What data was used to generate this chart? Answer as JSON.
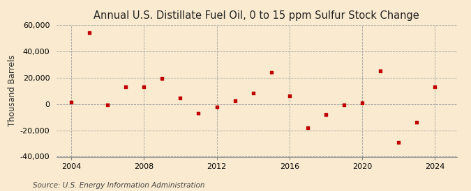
{
  "title": "Annual U.S. Distillate Fuel Oil, 0 to 15 ppm Sulfur Stock Change",
  "ylabel": "Thousand Barrels",
  "source": "Source: U.S. Energy Information Administration",
  "years": [
    2004,
    2005,
    2006,
    2007,
    2008,
    2009,
    2010,
    2011,
    2012,
    2013,
    2014,
    2015,
    2016,
    2017,
    2018,
    2019,
    2020,
    2021,
    2022,
    2023,
    2024
  ],
  "values": [
    1200,
    54000,
    -500,
    13000,
    13000,
    19500,
    4500,
    -7000,
    -2500,
    2500,
    8000,
    24000,
    6000,
    -18000,
    -8000,
    -1000,
    1000,
    25000,
    -29000,
    -14000,
    13000
  ],
  "point_color": "#c00000",
  "bg_color": "#faebd0",
  "grid_color": "#999999",
  "ylim": [
    -40000,
    60000
  ],
  "xlim": [
    2003.2,
    2025.2
  ],
  "yticks": [
    -40000,
    -20000,
    0,
    20000,
    40000,
    60000
  ],
  "xticks": [
    2004,
    2008,
    2012,
    2016,
    2020,
    2024
  ],
  "title_fontsize": 10.5,
  "label_fontsize": 8.5,
  "tick_fontsize": 8,
  "source_fontsize": 7.5
}
